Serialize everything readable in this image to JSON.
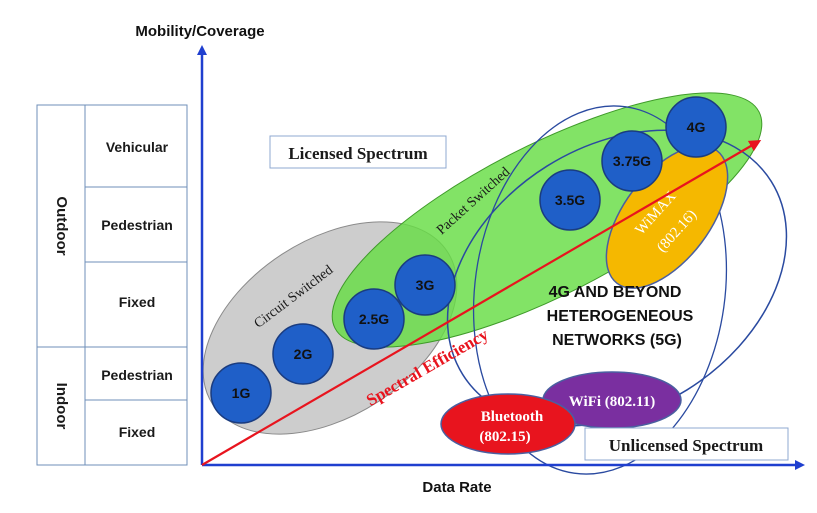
{
  "axes": {
    "y_label": "Mobility/Coverage",
    "x_label": "Data Rate"
  },
  "left_table": {
    "groups": [
      {
        "label": "Outdoor",
        "rows": [
          "Vehicular",
          "Pedestrian",
          "Fixed"
        ]
      },
      {
        "label": "Indoor",
        "rows": [
          "Pedestrian",
          "Fixed"
        ]
      }
    ]
  },
  "regions": {
    "licensed": "Licensed Spectrum",
    "unlicensed": "Unlicensed Spectrum",
    "circuit_switched": "Circuit Switched",
    "packet_switched": "Packet Switched",
    "heterogeneous": [
      "4G AND BEYOND",
      "HETEROGENEOUS",
      "NETWORKS (5G)"
    ],
    "spectral_efficiency": "Spectral Efficiency"
  },
  "generations": [
    "1G",
    "2G",
    "2.5G",
    "3G",
    "3.5G",
    "3.75G",
    "4G"
  ],
  "technologies": {
    "wimax": [
      "WiMAX",
      "(802.16)"
    ],
    "wifi": "WiFi (802.11)",
    "bluetooth": [
      "Bluetooth",
      "(802.15)"
    ]
  },
  "colors": {
    "axis": "#1f3fcf",
    "circle_fill": "#1f5fc8",
    "circuit_fill": "#c8c8c8",
    "packet_fill": "#66dd44",
    "wimax_fill": "#f5b800",
    "wifi_fill": "#7a2fa0",
    "bluetooth_fill": "#e8141e",
    "arrow": "#e8141e"
  }
}
